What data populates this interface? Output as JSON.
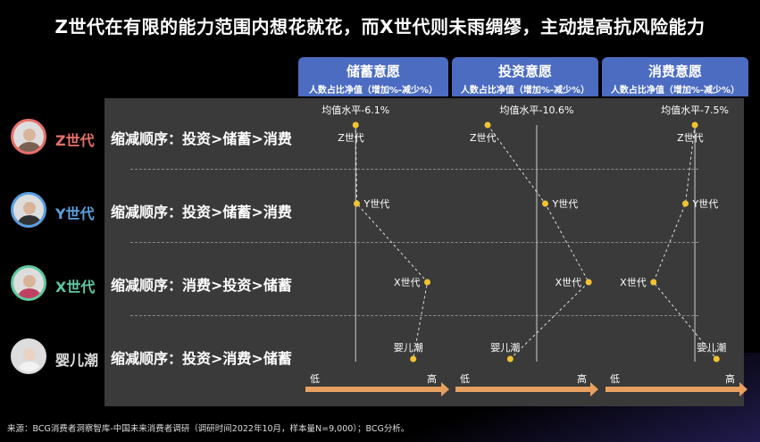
{
  "title": "Z世代在有限的能力范围内想花就花，而X世代则未雨绸缪，主动提高抗风险能力",
  "footnote": "来源：BCG消费者洞察智库-中国未来消费者调研（调研时间2022年10月，样本量N=9,000）；BCG分析。",
  "generations": [
    {
      "label": "Z世代",
      "color": "#e8706a",
      "order": "缩减顺序：投资>储蓄>消费",
      "avatar_icon": "woman-avatar-icon"
    },
    {
      "label": "Y世代",
      "color": "#5aa0e0",
      "order": "缩减顺序：投资>储蓄>消费",
      "avatar_icon": "woman-avatar-icon"
    },
    {
      "label": "X世代",
      "color": "#5fc9a0",
      "order": "缩减顺序：消费>投资>储蓄",
      "avatar_icon": "family-avatar-icon"
    },
    {
      "label": "婴儿潮",
      "color": "#dddddd",
      "order": "缩减顺序：投资>消费>储蓄",
      "avatar_icon": "elder-avatar-icon"
    }
  ],
  "axis": {
    "low": "低",
    "high": "高"
  },
  "chart_data": [
    {
      "type": "scatter",
      "title": "储蓄意愿",
      "subtitle": "人数占比净值（增加%-减少%）",
      "mean_label": "均值水平-6.1%",
      "mean": -6.1,
      "points": [
        {
          "label": "Z世代",
          "x": -6.1
        },
        {
          "label": "Y世代",
          "x": -5.9
        },
        {
          "label": "X世代",
          "x": 6.6
        },
        {
          "label": "婴儿潮",
          "x": 4.1
        }
      ]
    },
    {
      "type": "scatter",
      "title": "投资意愿",
      "subtitle": "人数占比净值（增加%-减少%）",
      "mean_label": "均值水平-10.6%",
      "mean": -10.6,
      "points": [
        {
          "label": "Z世代",
          "x": -19.3
        },
        {
          "label": "Y世代",
          "x": -9.1
        },
        {
          "label": "X世代",
          "x": -1.4
        },
        {
          "label": "婴儿潮",
          "x": -15.3
        }
      ]
    },
    {
      "type": "scatter",
      "title": "消费意愿",
      "subtitle": "人数占比净值（增加%-减少%）",
      "mean_label": "均值水平-7.5%",
      "mean": -7.5,
      "points": [
        {
          "label": "Z世代",
          "x": -7.5
        },
        {
          "label": "Y世代",
          "x": -8.5
        },
        {
          "label": "X世代",
          "x": -11.9
        },
        {
          "label": "婴儿潮",
          "x": -5.2
        }
      ]
    }
  ]
}
